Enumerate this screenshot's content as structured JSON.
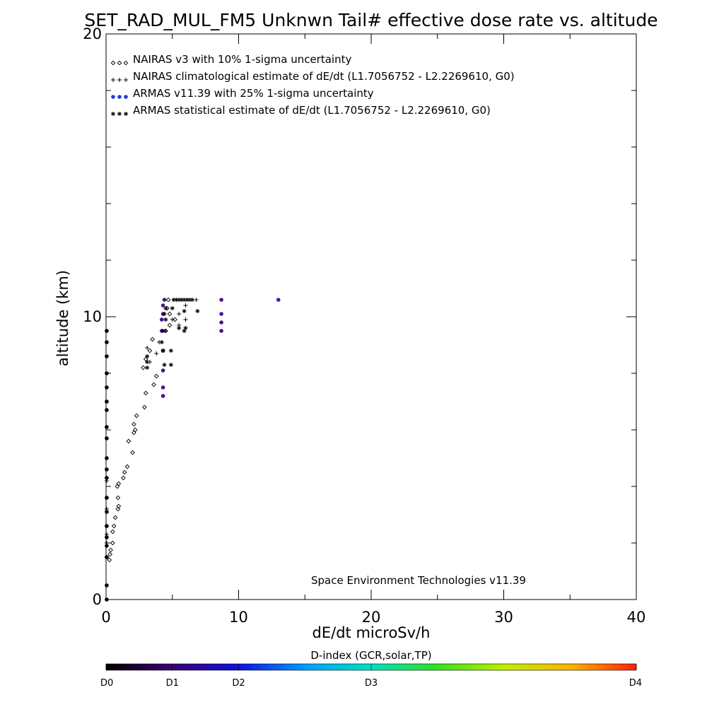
{
  "chart_data": {
    "type": "scatter",
    "title": "SET_RAD_MUL_FM5 Unknwn Tail#  effective dose rate vs. altitude",
    "xlabel": "dE/dt microSv/h",
    "ylabel": "altitude (km)",
    "xlim": [
      0,
      40
    ],
    "ylim": [
      0,
      20
    ],
    "x_ticks": [
      0,
      10,
      20,
      30,
      40
    ],
    "y_ticks": [
      0,
      10,
      20
    ],
    "credit": "Space Environment Technologies v11.39",
    "legend_position": "top-left",
    "grid": false,
    "legend": [
      {
        "marker": "diamond",
        "label": "NAIRAS v3 with 10% 1-sigma uncertainty"
      },
      {
        "marker": "plus",
        "label": "NAIRAS climatological estimate of dE/dt (L1.7056752 - L2.2269610, G0)"
      },
      {
        "marker": "dot",
        "label": "ARMAS v11.39 with 25% 1-sigma uncertainty"
      },
      {
        "marker": "asterisk",
        "label": "ARMAS statistical estimate of dE/dt (L1.7056752 - L2.2269610, G0)"
      }
    ],
    "colorbar": {
      "title": "D-index (GCR,solar,TP)",
      "labels": [
        {
          "text": "D0",
          "pos": 0.0
        },
        {
          "text": "D1",
          "pos": 0.125
        },
        {
          "text": "D2",
          "pos": 0.25
        },
        {
          "text": "D3",
          "pos": 0.5
        },
        {
          "text": "D4",
          "pos": 1.0
        }
      ]
    },
    "series": [
      {
        "marker": "diamond",
        "points": [
          [
            0.25,
            1.4
          ],
          [
            0.3,
            1.6
          ],
          [
            0.35,
            1.75
          ],
          [
            0.5,
            2.0
          ],
          [
            0.5,
            2.4
          ],
          [
            0.6,
            2.6
          ],
          [
            0.7,
            2.9
          ],
          [
            0.9,
            3.2
          ],
          [
            0.95,
            3.3
          ],
          [
            0.9,
            3.6
          ],
          [
            0.85,
            4.0
          ],
          [
            0.95,
            4.1
          ],
          [
            1.3,
            4.3
          ],
          [
            1.4,
            4.5
          ],
          [
            1.6,
            4.7
          ],
          [
            2.0,
            5.2
          ],
          [
            1.7,
            5.6
          ],
          [
            2.1,
            5.9
          ],
          [
            2.2,
            6.0
          ],
          [
            2.1,
            6.2
          ],
          [
            2.3,
            6.5
          ],
          [
            2.9,
            6.8
          ],
          [
            3.0,
            7.3
          ],
          [
            3.6,
            7.6
          ],
          [
            3.8,
            7.9
          ],
          [
            2.8,
            8.2
          ],
          [
            3.0,
            8.5
          ],
          [
            3.3,
            8.8
          ],
          [
            3.5,
            9.2
          ],
          [
            4.5,
            9.5
          ],
          [
            4.8,
            9.7
          ],
          [
            5.2,
            9.9
          ],
          [
            4.8,
            10.1
          ],
          [
            4.6,
            10.3
          ],
          [
            4.7,
            10.6
          ]
        ]
      },
      {
        "marker": "plus",
        "points": [
          [
            0.05,
            1.5
          ],
          [
            0.05,
            2.0
          ],
          [
            0.05,
            2.3
          ],
          [
            0.05,
            2.6
          ],
          [
            0.05,
            3.2
          ],
          [
            0.05,
            3.6
          ],
          [
            0.05,
            4.2
          ],
          [
            0.05,
            4.3
          ],
          [
            3.3,
            8.4
          ],
          [
            3.8,
            8.7
          ],
          [
            3.1,
            8.9
          ],
          [
            4.0,
            9.1
          ],
          [
            4.5,
            9.5
          ],
          [
            5.5,
            9.7
          ],
          [
            5.0,
            9.9
          ],
          [
            6.0,
            9.9
          ],
          [
            5.5,
            10.1
          ],
          [
            6.0,
            10.4
          ],
          [
            6.8,
            10.6
          ]
        ]
      },
      {
        "marker": "dot",
        "points": [
          [
            0.05,
            0.0
          ],
          [
            0.05,
            0.5
          ],
          [
            0.05,
            1.5
          ],
          [
            0.05,
            1.9
          ],
          [
            0.05,
            2.2
          ],
          [
            0.05,
            2.6
          ],
          [
            0.05,
            3.1
          ],
          [
            0.05,
            3.6
          ],
          [
            0.05,
            4.3
          ],
          [
            0.05,
            4.6
          ],
          [
            0.05,
            5.0
          ],
          [
            0.05,
            5.7
          ],
          [
            0.05,
            6.1
          ],
          [
            0.05,
            6.7
          ],
          [
            0.05,
            7.0
          ],
          [
            0.05,
            7.5
          ],
          [
            0.05,
            8.0
          ],
          [
            0.05,
            8.6
          ],
          [
            0.05,
            9.1
          ],
          [
            0.05,
            9.5
          ],
          [
            4.3,
            7.2
          ],
          [
            4.3,
            7.5
          ],
          [
            4.3,
            8.1
          ],
          [
            4.3,
            8.8
          ],
          [
            4.2,
            9.5
          ],
          [
            4.2,
            9.9
          ],
          [
            4.3,
            10.1
          ],
          [
            4.3,
            10.4
          ],
          [
            4.4,
            10.6
          ],
          [
            8.7,
            9.5
          ],
          [
            8.7,
            9.8
          ],
          [
            8.7,
            10.1
          ],
          [
            8.7,
            10.6
          ],
          [
            13.0,
            10.6
          ]
        ]
      },
      {
        "marker": "asterisk",
        "points": [
          [
            3.1,
            8.2
          ],
          [
            3.1,
            8.4
          ],
          [
            3.1,
            8.6
          ],
          [
            4.4,
            8.3
          ],
          [
            4.9,
            8.3
          ],
          [
            4.3,
            8.8
          ],
          [
            4.9,
            8.8
          ],
          [
            4.2,
            9.1
          ],
          [
            4.3,
            9.5
          ],
          [
            5.9,
            9.5
          ],
          [
            6.0,
            9.6
          ],
          [
            5.5,
            9.6
          ],
          [
            4.5,
            9.9
          ],
          [
            4.4,
            10.1
          ],
          [
            5.9,
            10.2
          ],
          [
            6.9,
            10.2
          ],
          [
            4.5,
            10.3
          ],
          [
            5.0,
            10.3
          ],
          [
            5.1,
            10.6
          ],
          [
            5.3,
            10.6
          ],
          [
            5.5,
            10.6
          ],
          [
            5.7,
            10.6
          ],
          [
            5.9,
            10.6
          ],
          [
            6.1,
            10.6
          ],
          [
            6.3,
            10.6
          ],
          [
            6.5,
            10.6
          ]
        ]
      }
    ]
  }
}
